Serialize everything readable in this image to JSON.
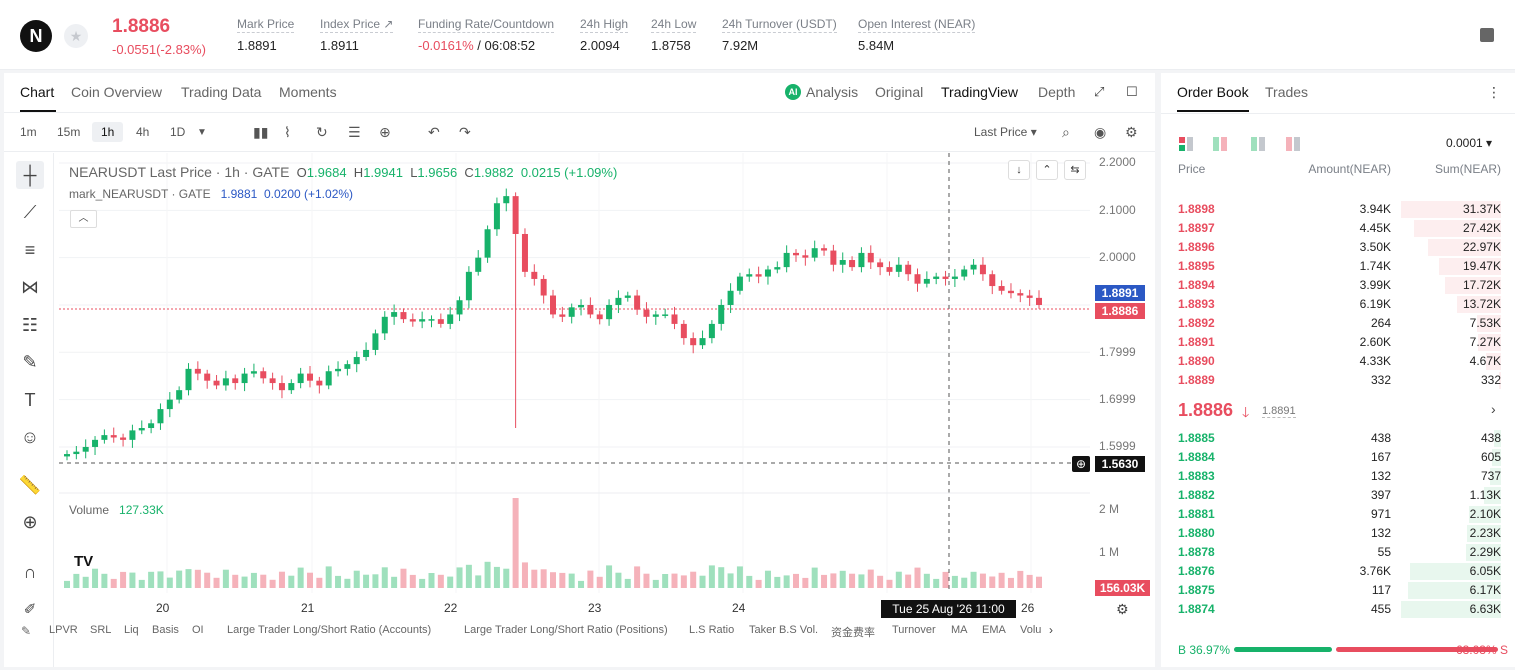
{
  "header": {
    "logo_text": "N",
    "price": "1.8886",
    "change": "-0.0551(-2.83%)",
    "stats": [
      {
        "label": "Mark Price",
        "value": "1.8891",
        "value_color": "#222222"
      },
      {
        "label": "Index Price ↗",
        "value": "1.8911",
        "value_color": "#222222"
      },
      {
        "label": "Funding Rate/Countdown",
        "value": "-0.0161%",
        "value2": " / 06:08:52",
        "value_color": "#e84d5f"
      },
      {
        "label": "24h High",
        "value": "2.0094",
        "value_color": "#222222"
      },
      {
        "label": "24h Low",
        "value": "1.8758",
        "value_color": "#222222"
      },
      {
        "label": "24h Turnover (USDT)",
        "value": "7.92M",
        "value_color": "#222222"
      },
      {
        "label": "Open Interest (NEAR)",
        "value": "5.84M",
        "value_color": "#222222"
      }
    ]
  },
  "chart_tabs": {
    "left": [
      "Chart",
      "Coin Overview",
      "Trading Data",
      "Moments"
    ],
    "right": [
      "Analysis",
      "Original",
      "TradingView",
      "Depth"
    ]
  },
  "toolbar": {
    "intervals": [
      "1m",
      "15m",
      "1h",
      "4h",
      "1D"
    ],
    "price_type": "Last Price ▾"
  },
  "chart_info": {
    "symbol": "NEARUSDT Last Price · 1h · GATE",
    "o_label": "O",
    "o": "1.9684",
    "h_label": "H",
    "h": "1.9941",
    "l_label": "L",
    "l": "1.9656",
    "c_label": "C",
    "c": "1.9882",
    "chg": "0.0215 (+1.09%)",
    "mark_label": "mark_NEARUSDT · GATE",
    "mark_val": "1.9881",
    "mark_chg": "0.0200 (+1.02%)",
    "volume_label": "Volume",
    "volume_val": "127.33K"
  },
  "y_axis": [
    "2.2000",
    "2.1000",
    "2.0000",
    "1.7999",
    "1.6999",
    "1.5999"
  ],
  "price_labels": {
    "mark": "1.8891",
    "last": "1.8886",
    "cross": "1.5630"
  },
  "volume_axis": [
    "2 M",
    "1 M"
  ],
  "volume_last": "156.03K",
  "x_axis": [
    "20",
    "21",
    "22",
    "23",
    "24",
    "26"
  ],
  "crosshair_date": "Tue 25 Aug '26   11:00",
  "indicators": [
    "LPVR",
    "SRL",
    "Liq",
    "Basis",
    "OI",
    "Large Trader Long/Short Ratio (Accounts)",
    "Large Trader Long/Short Ratio (Positions)",
    "L.S Ratio",
    "Taker B.S Vol.",
    "资金费率",
    "Turnover",
    "MA",
    "EMA",
    "Volu"
  ],
  "order_book": {
    "tabs": [
      "Order Book",
      "Trades"
    ],
    "precision": "0.0001 ▾",
    "columns": [
      "Price",
      "Amount(NEAR)",
      "Sum(NEAR)"
    ],
    "asks": [
      {
        "price": "1.8898",
        "amount": "3.94K",
        "sum": "31.37K",
        "depth": 1.0
      },
      {
        "price": "1.8897",
        "amount": "4.45K",
        "sum": "27.42K",
        "depth": 0.87
      },
      {
        "price": "1.8896",
        "amount": "3.50K",
        "sum": "22.97K",
        "depth": 0.73
      },
      {
        "price": "1.8895",
        "amount": "1.74K",
        "sum": "19.47K",
        "depth": 0.62
      },
      {
        "price": "1.8894",
        "amount": "3.99K",
        "sum": "17.72K",
        "depth": 0.56
      },
      {
        "price": "1.8893",
        "amount": "6.19K",
        "sum": "13.72K",
        "depth": 0.44
      },
      {
        "price": "1.8892",
        "amount": "264",
        "sum": "7.53K",
        "depth": 0.24
      },
      {
        "price": "1.8891",
        "amount": "2.60K",
        "sum": "7.27K",
        "depth": 0.23
      },
      {
        "price": "1.8890",
        "amount": "4.33K",
        "sum": "4.67K",
        "depth": 0.15
      },
      {
        "price": "1.8889",
        "amount": "332",
        "sum": "332",
        "depth": 0.01
      }
    ],
    "mid_price": "1.8886",
    "mid_mark": "1.8891",
    "bids": [
      {
        "price": "1.8885",
        "amount": "438",
        "sum": "438",
        "depth": 0.07
      },
      {
        "price": "1.8884",
        "amount": "167",
        "sum": "605",
        "depth": 0.09
      },
      {
        "price": "1.8883",
        "amount": "132",
        "sum": "737",
        "depth": 0.11
      },
      {
        "price": "1.8882",
        "amount": "397",
        "sum": "1.13K",
        "depth": 0.17
      },
      {
        "price": "1.8881",
        "amount": "971",
        "sum": "2.10K",
        "depth": 0.32
      },
      {
        "price": "1.8880",
        "amount": "132",
        "sum": "2.23K",
        "depth": 0.34
      },
      {
        "price": "1.8878",
        "amount": "55",
        "sum": "2.29K",
        "depth": 0.35
      },
      {
        "price": "1.8876",
        "amount": "3.76K",
        "sum": "6.05K",
        "depth": 0.91
      },
      {
        "price": "1.8875",
        "amount": "117",
        "sum": "6.17K",
        "depth": 0.93
      },
      {
        "price": "1.8874",
        "amount": "455",
        "sum": "6.63K",
        "depth": 1.0
      }
    ],
    "ratio": {
      "buy_label": "B 36.97%",
      "sell_label": "63.03% S",
      "buy": 0.3697
    }
  },
  "colors": {
    "up": "#17b26a",
    "down": "#e84d5f",
    "ask_bar": "#fdeeef",
    "bid_bar": "#e8f7ee"
  },
  "chart_data": {
    "type": "candlestick",
    "symbol": "NEARUSDT",
    "interval": "1h",
    "ylim": [
      1.55,
      2.22
    ],
    "price_series": [
      1.585,
      1.59,
      1.6,
      1.615,
      1.625,
      1.62,
      1.615,
      1.635,
      1.64,
      1.65,
      1.68,
      1.7,
      1.72,
      1.765,
      1.755,
      1.74,
      1.73,
      1.745,
      1.735,
      1.755,
      1.76,
      1.745,
      1.735,
      1.72,
      1.735,
      1.755,
      1.74,
      1.73,
      1.76,
      1.765,
      1.775,
      1.79,
      1.805,
      1.84,
      1.875,
      1.885,
      1.87,
      1.865,
      1.87,
      1.87,
      1.86,
      1.88,
      1.91,
      1.97,
      2.0,
      2.06,
      2.115,
      2.13,
      2.05,
      1.97,
      1.955,
      1.92,
      1.88,
      1.875,
      1.895,
      1.9,
      1.88,
      1.87,
      1.9,
      1.915,
      1.92,
      1.89,
      1.875,
      1.88,
      1.88,
      1.86,
      1.83,
      1.815,
      1.83,
      1.86,
      1.9,
      1.93,
      1.96,
      1.965,
      1.96,
      1.975,
      1.98,
      2.01,
      2.005,
      2.0,
      2.02,
      2.015,
      1.985,
      1.995,
      1.98,
      2.01,
      1.99,
      1.98,
      1.97,
      1.985,
      1.965,
      1.945,
      1.955,
      1.96,
      1.955,
      1.96,
      1.975,
      1.985,
      1.965,
      1.94,
      1.93,
      1.925,
      1.92,
      1.915,
      1.9
    ]
  }
}
